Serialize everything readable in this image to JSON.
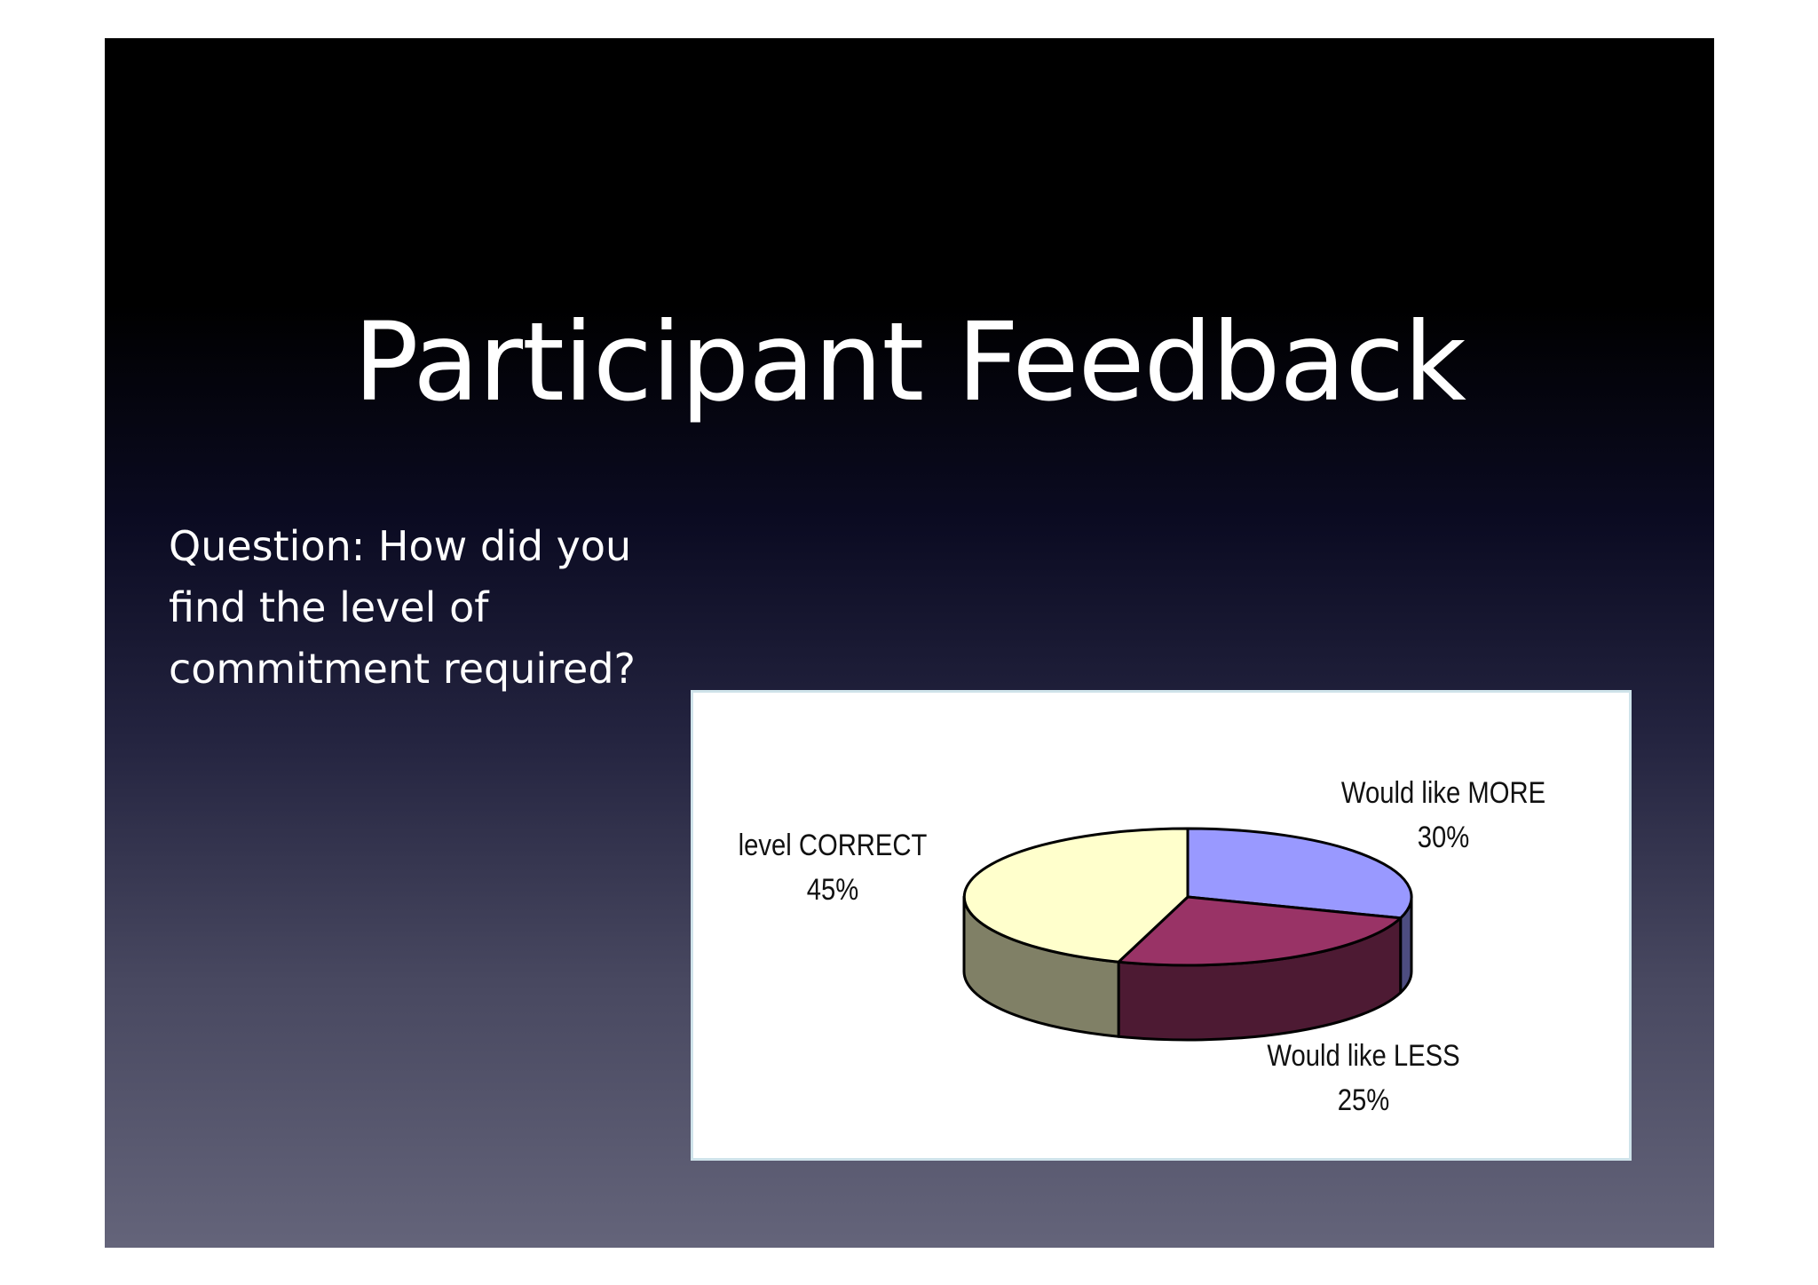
{
  "slide": {
    "title": "Participant Feedback",
    "question_lines": [
      "Question: How did you",
      "find the level of",
      "commitment required?"
    ]
  },
  "chart_data": {
    "type": "pie",
    "style": "3d",
    "slices": [
      {
        "label": "Would like MORE",
        "value": 30,
        "value_label": "30%",
        "color": "#9999ff",
        "side_color": "#4d4d80"
      },
      {
        "label": "Would like LESS",
        "value": 25,
        "value_label": "25%",
        "color": "#993366",
        "side_color": "#4d1a33"
      },
      {
        "label": "level CORRECT",
        "value": 45,
        "value_label": "45%",
        "color": "#ffffcc",
        "side_color": "#808066"
      }
    ],
    "legend": "none"
  }
}
